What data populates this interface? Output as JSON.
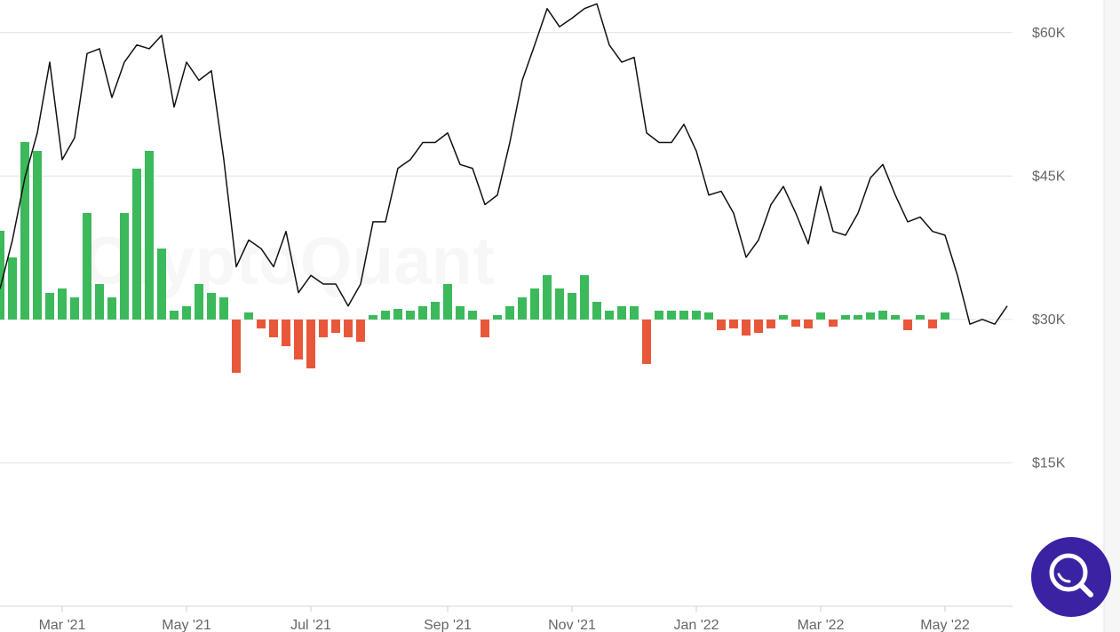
{
  "chart_data": {
    "type": "line",
    "watermark": "CryptoQuant",
    "categories": [
      null,
      null,
      null,
      null,
      null,
      "Mar '21",
      null,
      null,
      null,
      null,
      null,
      null,
      null,
      null,
      null,
      "May '21",
      null,
      null,
      null,
      null,
      null,
      null,
      null,
      null,
      null,
      "Jul '21",
      null,
      null,
      null,
      null,
      null,
      null,
      null,
      null,
      null,
      null,
      "Sep '21",
      null,
      null,
      null,
      null,
      null,
      null,
      null,
      null,
      null,
      "Nov '21",
      null,
      null,
      null,
      null,
      null,
      null,
      null,
      null,
      null,
      "Jan '22",
      null,
      null,
      null,
      null,
      null,
      null,
      null,
      null,
      null,
      "Mar '22",
      null,
      null,
      null,
      null,
      null,
      null,
      null,
      null,
      null,
      "May '22",
      null,
      null,
      null,
      null,
      null
    ],
    "ylim": [
      0,
      63400
    ],
    "yticks": [
      {
        "value": 15000,
        "label": "$15K"
      },
      {
        "value": 30000,
        "label": "$30K"
      },
      {
        "value": 45000,
        "label": "$45K"
      },
      {
        "value": 60000,
        "label": "$60K"
      }
    ],
    "y2lim": [
      -3230,
      3600
    ],
    "grid": true,
    "series": [
      {
        "color": "#111111",
        "values": [
          33200,
          38300,
          44800,
          49500,
          56900,
          46700,
          49000,
          57800,
          58300,
          53200,
          56900,
          58700,
          58300,
          59700,
          52200,
          56900,
          55000,
          56000,
          46700,
          35500,
          38300,
          37400,
          35500,
          39200,
          32800,
          34600,
          33700,
          33700,
          31400,
          33700,
          40200,
          40200,
          45800,
          46700,
          48500,
          48500,
          49500,
          46200,
          45800,
          42000,
          43000,
          48500,
          55000,
          58700,
          62500,
          60600,
          61500,
          62500,
          63000,
          58700,
          56900,
          57400,
          49500,
          48500,
          48500,
          50400,
          47600,
          43000,
          43400,
          41100,
          36500,
          38300,
          42000,
          43900,
          41100,
          37900,
          43900,
          39200,
          38800,
          41100,
          44800,
          46200,
          43000,
          40200,
          40700,
          39200,
          38800,
          34600,
          29500,
          30000,
          29500,
          31400
        ]
      },
      {
        "type": "bar",
        "axis": "y2",
        "color": "#3cb95b",
        "negative_color": "#e8573a",
        "values": [
          1000,
          700,
          2000,
          1900,
          300,
          350,
          250,
          1200,
          400,
          250,
          1200,
          1700,
          1900,
          800,
          100,
          150,
          400,
          300,
          250,
          -600,
          80,
          -100,
          -200,
          -300,
          -450,
          -550,
          -200,
          -150,
          -200,
          -250,
          50,
          100,
          120,
          100,
          150,
          200,
          400,
          150,
          100,
          -200,
          50,
          150,
          250,
          350,
          500,
          350,
          300,
          500,
          200,
          100,
          150,
          150,
          -500,
          100,
          100,
          100,
          100,
          80,
          -120,
          -100,
          -180,
          -150,
          -100,
          50,
          -80,
          -100,
          80,
          -80,
          50,
          50,
          80,
          100,
          50,
          -120,
          50,
          -100,
          80,
          null,
          null,
          null,
          null,
          null
        ]
      }
    ]
  }
}
